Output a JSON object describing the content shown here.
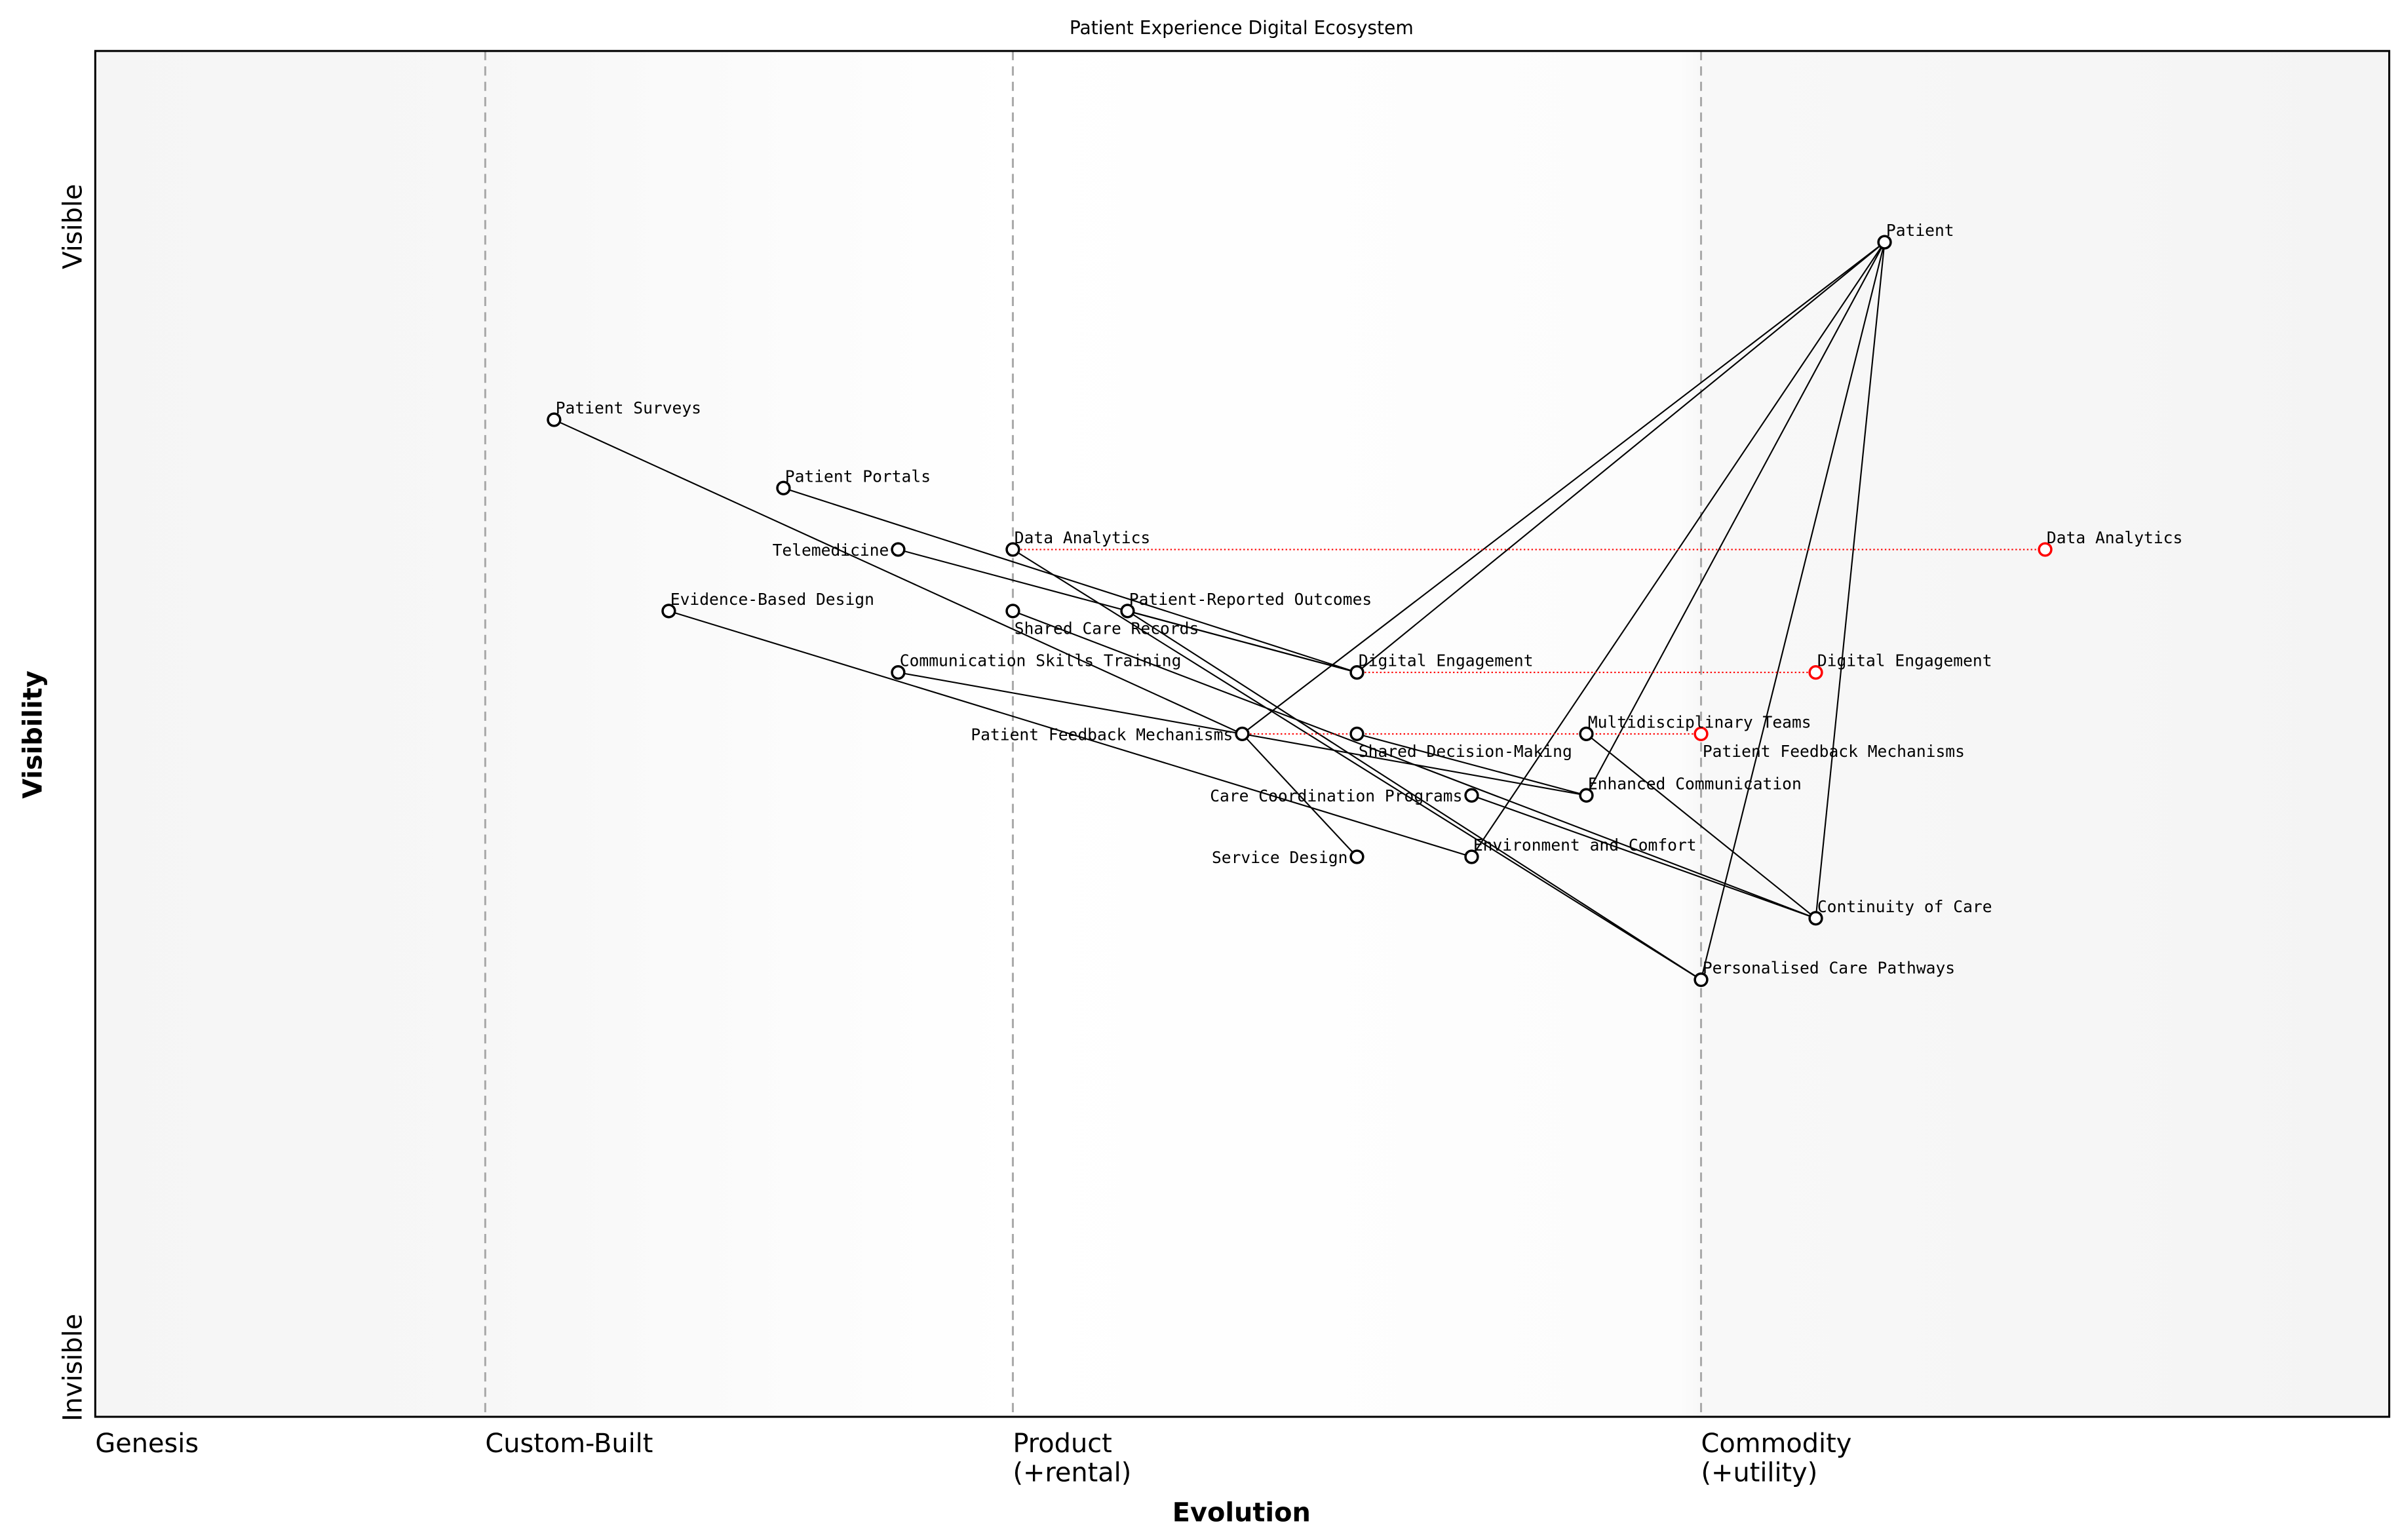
{
  "chart_data": {
    "type": "wardley-map",
    "title": "Patient Experience Digital Ecosystem",
    "xlabel": "Evolution",
    "ylabel": "Visibility",
    "x_stages": [
      {
        "label": "Genesis",
        "at": 0.0
      },
      {
        "label": "Custom-Built",
        "at": 0.17
      },
      {
        "label": "Product\n(+rental)",
        "at": 0.4
      },
      {
        "label": "Commodity\n(+utility)",
        "at": 0.7
      }
    ],
    "y_labels": {
      "top": "Visible",
      "bottom": "Invisible"
    },
    "xlim": [
      0,
      1
    ],
    "ylim": [
      0,
      1
    ],
    "colors": {
      "node": "#000000",
      "evolved": "#ff0000",
      "stage_line": "#aaaaaa",
      "band_edge": "#f5f5f5"
    },
    "components": [
      {
        "name": "Patient",
        "evolution": 0.78,
        "visibility": 0.86
      },
      {
        "name": "Patient Surveys",
        "evolution": 0.2,
        "visibility": 0.73
      },
      {
        "name": "Patient Portals",
        "evolution": 0.3,
        "visibility": 0.68
      },
      {
        "name": "Telemedicine",
        "evolution": 0.35,
        "visibility": 0.635
      },
      {
        "name": "Data Analytics",
        "evolution": 0.4,
        "visibility": 0.635
      },
      {
        "name": "Evidence-Based Design",
        "evolution": 0.25,
        "visibility": 0.59
      },
      {
        "name": "Shared Care Records",
        "evolution": 0.4,
        "visibility": 0.59
      },
      {
        "name": "Patient-Reported Outcomes",
        "evolution": 0.45,
        "visibility": 0.59
      },
      {
        "name": "Communication Skills Training",
        "evolution": 0.35,
        "visibility": 0.545
      },
      {
        "name": "Digital Engagement",
        "evolution": 0.55,
        "visibility": 0.545
      },
      {
        "name": "Patient Feedback Mechanisms",
        "evolution": 0.5,
        "visibility": 0.5
      },
      {
        "name": "Shared Decision-Making",
        "evolution": 0.55,
        "visibility": 0.5
      },
      {
        "name": "Multidisciplinary Teams",
        "evolution": 0.65,
        "visibility": 0.5
      },
      {
        "name": "Care Coordination Programs",
        "evolution": 0.6,
        "visibility": 0.455
      },
      {
        "name": "Enhanced Communication",
        "evolution": 0.65,
        "visibility": 0.455
      },
      {
        "name": "Service Design",
        "evolution": 0.55,
        "visibility": 0.41
      },
      {
        "name": "Environment and Comfort",
        "evolution": 0.6,
        "visibility": 0.41
      },
      {
        "name": "Continuity of Care",
        "evolution": 0.75,
        "visibility": 0.365
      },
      {
        "name": "Personalised Care Pathways",
        "evolution": 0.7,
        "visibility": 0.32
      }
    ],
    "evolved": [
      {
        "name": "Data Analytics",
        "from": 0.4,
        "evolution": 0.85,
        "visibility": 0.635
      },
      {
        "name": "Digital Engagement",
        "from": 0.55,
        "evolution": 0.75,
        "visibility": 0.545
      },
      {
        "name": "Patient Feedback Mechanisms",
        "from": 0.5,
        "evolution": 0.7,
        "visibility": 0.5
      }
    ],
    "links": [
      [
        "Patient",
        "Digital Engagement"
      ],
      [
        "Patient",
        "Patient Feedback Mechanisms"
      ],
      [
        "Patient",
        "Environment and Comfort"
      ],
      [
        "Patient",
        "Enhanced Communication"
      ],
      [
        "Patient",
        "Personalised Care Pathways"
      ],
      [
        "Patient",
        "Continuity of Care"
      ],
      [
        "Patient Surveys",
        "Patient Feedback Mechanisms"
      ],
      [
        "Patient Portals",
        "Digital Engagement"
      ],
      [
        "Telemedicine",
        "Digital Engagement"
      ],
      [
        "Patient-Reported Outcomes",
        "Digital Engagement"
      ],
      [
        "Data Analytics",
        "Personalised Care Pathways"
      ],
      [
        "Patient-Reported Outcomes",
        "Personalised Care Pathways"
      ],
      [
        "Shared Care Records",
        "Continuity of Care"
      ],
      [
        "Care Coordination Programs",
        "Continuity of Care"
      ],
      [
        "Multidisciplinary Teams",
        "Continuity of Care"
      ],
      [
        "Evidence-Based Design",
        "Environment and Comfort"
      ],
      [
        "Communication Skills Training",
        "Enhanced Communication"
      ],
      [
        "Shared Decision-Making",
        "Enhanced Communication"
      ],
      [
        "Patient Feedback Mechanisms",
        "Service Design"
      ]
    ]
  }
}
